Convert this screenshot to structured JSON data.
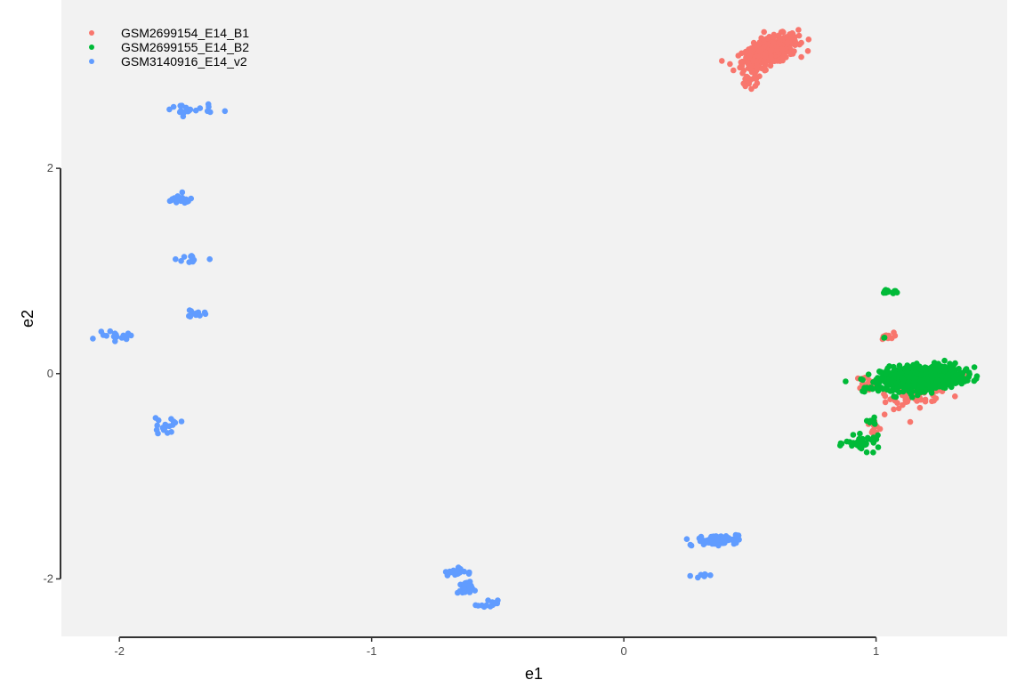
{
  "chart_data": {
    "type": "scatter",
    "title": "",
    "xlabel": "e1",
    "ylabel": "e2",
    "xlim": [
      -2.23,
      1.52
    ],
    "ylim": [
      -2.56,
      3.64
    ],
    "x_ticks": [
      -2,
      -1,
      0,
      1
    ],
    "x_tick_labels": [
      "-2",
      "-1",
      "0",
      "1"
    ],
    "y_ticks": [
      -2,
      0,
      2
    ],
    "y_tick_labels": [
      "-2",
      "0",
      "2"
    ],
    "grid": false,
    "panel_background": "#f2f2f2",
    "legend_position": "top-left",
    "series": [
      {
        "name": "GSM2699154_E14_B1",
        "color": "#F8766D",
        "clusters": [
          {
            "cx": 0.58,
            "cy": 3.14,
            "sx": 0.055,
            "sy": 0.08,
            "n": 420,
            "r": 0.6
          },
          {
            "cx": 0.5,
            "cy": 2.84,
            "sx": 0.025,
            "sy": 0.04,
            "n": 18,
            "r": 0
          },
          {
            "cx": 1.17,
            "cy": -0.15,
            "sx": 0.06,
            "sy": 0.08,
            "n": 110,
            "r": 0.3
          },
          {
            "cx": 0.96,
            "cy": -0.09,
            "sx": 0.02,
            "sy": 0.03,
            "n": 14,
            "r": 0
          },
          {
            "cx": 1.04,
            "cy": 0.36,
            "sx": 0.015,
            "sy": 0.02,
            "n": 12,
            "r": 0
          },
          {
            "cx": 0.99,
            "cy": -0.53,
            "sx": 0.02,
            "sy": 0.04,
            "n": 10,
            "r": 0
          }
        ]
      },
      {
        "name": "GSM2699155_E14_B2",
        "color": "#00BA38",
        "clusters": [
          {
            "cx": 1.18,
            "cy": -0.04,
            "sx": 0.08,
            "sy": 0.06,
            "n": 650,
            "r": 0.2
          },
          {
            "cx": 1.05,
            "cy": 0.8,
            "sx": 0.02,
            "sy": 0.015,
            "n": 14,
            "r": 0
          },
          {
            "cx": 0.95,
            "cy": -0.68,
            "sx": 0.035,
            "sy": 0.035,
            "n": 40,
            "r": 0
          },
          {
            "cx": 0.98,
            "cy": -0.47,
            "sx": 0.015,
            "sy": 0.015,
            "n": 8,
            "r": 0
          },
          {
            "cx": 0.97,
            "cy": -0.15,
            "sx": 0.02,
            "sy": 0.015,
            "n": 8,
            "r": 0
          },
          {
            "cx": 1.03,
            "cy": 0.35,
            "sx": 0.005,
            "sy": 0.005,
            "n": 2,
            "r": 0
          }
        ]
      },
      {
        "name": "GSM3140916_E14_v2",
        "color": "#619CFF",
        "clusters": [
          {
            "cx": -1.73,
            "cy": 2.57,
            "sx": 0.05,
            "sy": 0.03,
            "n": 20,
            "r": 0
          },
          {
            "cx": -1.76,
            "cy": 1.69,
            "sx": 0.03,
            "sy": 0.03,
            "n": 20,
            "r": 0
          },
          {
            "cx": -1.71,
            "cy": 1.12,
            "sx": 0.03,
            "sy": 0.025,
            "n": 12,
            "r": 0
          },
          {
            "cx": -1.7,
            "cy": 0.58,
            "sx": 0.02,
            "sy": 0.02,
            "n": 12,
            "r": 0
          },
          {
            "cx": -2.02,
            "cy": 0.36,
            "sx": 0.035,
            "sy": 0.02,
            "n": 16,
            "r": 0
          },
          {
            "cx": -1.82,
            "cy": -0.5,
            "sx": 0.03,
            "sy": 0.04,
            "n": 18,
            "r": 0
          },
          {
            "cx": 0.37,
            "cy": -1.62,
            "sx": 0.04,
            "sy": 0.025,
            "n": 90,
            "r": 0.3
          },
          {
            "cx": 0.31,
            "cy": -1.97,
            "sx": 0.02,
            "sy": 0.01,
            "n": 8,
            "r": 0
          },
          {
            "cx": -0.67,
            "cy": -1.93,
            "sx": 0.02,
            "sy": 0.02,
            "n": 22,
            "r": 0
          },
          {
            "cx": -0.63,
            "cy": -2.1,
            "sx": 0.015,
            "sy": 0.035,
            "n": 24,
            "r": 0
          },
          {
            "cx": -0.54,
            "cy": -2.25,
            "sx": 0.02,
            "sy": 0.02,
            "n": 14,
            "r": 0
          }
        ]
      }
    ]
  }
}
